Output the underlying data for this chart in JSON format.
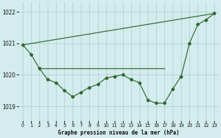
{
  "title": "Graphe pression niveau de la mer (hPa)",
  "bg_color": "#d4ecee",
  "grid_color": "#b0d0d4",
  "line_color": "#2d6a2d",
  "xlim": [
    -0.5,
    23.5
  ],
  "ylim": [
    1018.55,
    1022.3
  ],
  "yticks": [
    1019,
    1020,
    1021,
    1022
  ],
  "xticks": [
    0,
    1,
    2,
    3,
    4,
    5,
    6,
    7,
    8,
    9,
    10,
    11,
    12,
    13,
    14,
    15,
    16,
    17,
    18,
    19,
    20,
    21,
    22,
    23
  ],
  "series1_x": [
    0,
    1,
    2,
    3,
    4,
    5,
    6,
    7,
    8,
    9,
    10,
    11,
    12,
    13,
    14,
    15,
    16,
    17,
    18,
    19,
    20,
    21,
    22,
    23
  ],
  "series1_y": [
    1020.95,
    1020.65,
    1020.2,
    1019.85,
    1019.75,
    1019.5,
    1019.3,
    1019.45,
    1019.6,
    1019.7,
    1019.9,
    1019.95,
    1020.0,
    1019.85,
    1019.75,
    1019.2,
    1019.1,
    1019.1,
    1019.55,
    1019.95,
    1021.0,
    1021.6,
    1021.75,
    1021.95
  ],
  "series2_x": [
    0,
    23
  ],
  "series2_y": [
    1020.95,
    1021.95
  ],
  "series3_x": [
    2,
    17
  ],
  "series3_y": [
    1020.2,
    1020.2
  ],
  "marker_style": "D",
  "marker_size": 2.2,
  "line_width": 0.9
}
